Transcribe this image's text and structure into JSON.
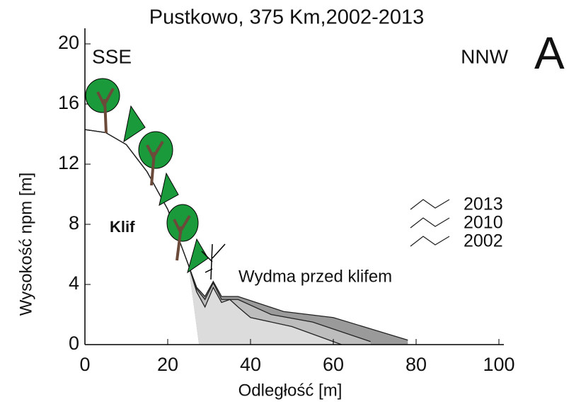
{
  "chart_data": {
    "type": "area",
    "title": "Pustkowo, 375 Km,2002-2013",
    "xlabel": "Odległość [m]",
    "ylabel": "Wysokość npm [m]",
    "annotations": [
      "SSE",
      "NNW",
      "A",
      "Klif",
      "Wydma przed klifem"
    ],
    "xlim": [
      0,
      100
    ],
    "xticks": [
      0,
      20,
      40,
      60,
      80,
      100
    ],
    "ylim": [
      0,
      20
    ],
    "yticks": [
      0,
      4,
      8,
      12,
      16,
      20
    ],
    "series": [
      {
        "name": "2013",
        "color": "#9a9a9a",
        "x": [
          0,
          5,
          10,
          15,
          20,
          25,
          27,
          29,
          31,
          33,
          35,
          37,
          48,
          60,
          78
        ],
        "values": [
          14.3,
          14.1,
          13.3,
          11.5,
          9,
          5.3,
          3.8,
          3.2,
          4.2,
          3.2,
          3.2,
          3.2,
          2.2,
          1.8,
          0.3
        ]
      },
      {
        "name": "2010",
        "color": "#bdbdbd",
        "x": [
          0,
          5,
          10,
          15,
          20,
          25,
          27,
          29,
          31,
          33,
          35,
          37,
          45,
          55,
          69
        ],
        "values": [
          14.3,
          14.1,
          13.3,
          11.5,
          9,
          5.3,
          3.7,
          3,
          4.1,
          3,
          3,
          3,
          2,
          1.5,
          0.2
        ]
      },
      {
        "name": "2002",
        "color": "#dcdcdc",
        "x": [
          0,
          5,
          10,
          15,
          20,
          25,
          27,
          29,
          31,
          33,
          35,
          37,
          40,
          50,
          62
        ],
        "values": [
          14.3,
          14.1,
          13.3,
          11.5,
          9,
          5.3,
          3.5,
          2.5,
          3.8,
          2.8,
          3,
          2.5,
          1.8,
          1.2,
          0
        ]
      }
    ]
  }
}
